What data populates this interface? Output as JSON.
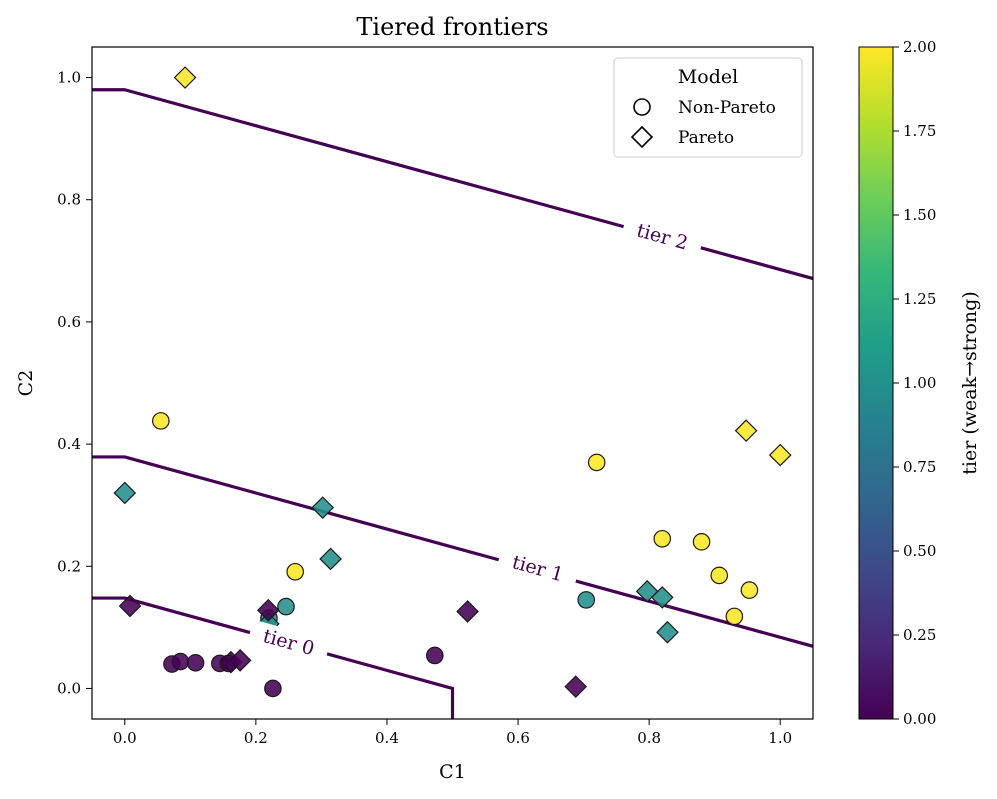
{
  "chart_data": {
    "type": "scatter",
    "title": "Tiered frontiers",
    "xlabel": "C1",
    "ylabel": "C2",
    "xlim": [
      -0.05,
      1.05
    ],
    "ylim": [
      -0.05,
      1.05
    ],
    "x_ticks": [
      0.0,
      0.2,
      0.4,
      0.6,
      0.8,
      1.0
    ],
    "y_ticks": [
      0.0,
      0.2,
      0.4,
      0.6,
      0.8,
      1.0
    ],
    "x_tick_labels": [
      "0.0",
      "0.2",
      "0.4",
      "0.6",
      "0.8",
      "1.0"
    ],
    "y_tick_labels": [
      "0.0",
      "0.2",
      "0.4",
      "0.6",
      "0.8",
      "1.0"
    ],
    "grid": false,
    "legend": {
      "title": "Model",
      "position": "top-right",
      "entries": [
        {
          "label": "Non-Pareto",
          "marker": "circle"
        },
        {
          "label": "Pareto",
          "marker": "diamond"
        }
      ]
    },
    "colorbar": {
      "label": "tier (weak→strong)",
      "range": [
        0.0,
        2.0
      ],
      "ticks": [
        0.0,
        0.25,
        0.5,
        0.75,
        1.0,
        1.25,
        1.5,
        1.75,
        2.0
      ],
      "tick_labels": [
        "0.00",
        "0.25",
        "0.50",
        "0.75",
        "1.00",
        "1.25",
        "1.50",
        "1.75",
        "2.00"
      ],
      "colormap": [
        "#440154",
        "#482878",
        "#3e4a89",
        "#31688e",
        "#26828e",
        "#1f9e89",
        "#35b779",
        "#6ece58",
        "#b5de2b",
        "#fde725"
      ]
    },
    "contours": [
      {
        "label": "tier 0",
        "level": 0,
        "color": "#440154",
        "points": [
          [
            -0.05,
            0.148
          ],
          [
            0.0,
            0.148
          ],
          [
            0.5,
            0.0
          ],
          [
            0.5,
            -0.05
          ]
        ],
        "label_at": [
          0.25,
          0.075
        ]
      },
      {
        "label": "tier 1",
        "level": 1,
        "color": "#440154",
        "points": [
          [
            -0.05,
            0.379
          ],
          [
            0.0,
            0.379
          ],
          [
            1.05,
            0.069
          ]
        ],
        "label_at": [
          0.63,
          0.196
        ]
      },
      {
        "label": "tier 2",
        "level": 2,
        "color": "#440154",
        "points": [
          [
            -0.05,
            0.98
          ],
          [
            0.0,
            0.98
          ],
          [
            1.05,
            0.671
          ]
        ],
        "label_at": [
          0.82,
          0.739
        ]
      }
    ],
    "series": [
      {
        "name": "Non-Pareto",
        "marker": "circle",
        "points": [
          {
            "x": 0.055,
            "y": 0.438,
            "tier": 2
          },
          {
            "x": 0.72,
            "y": 0.37,
            "tier": 2
          },
          {
            "x": 0.82,
            "y": 0.245,
            "tier": 2
          },
          {
            "x": 0.88,
            "y": 0.24,
            "tier": 2
          },
          {
            "x": 0.907,
            "y": 0.185,
            "tier": 2
          },
          {
            "x": 0.953,
            "y": 0.161,
            "tier": 2
          },
          {
            "x": 0.93,
            "y": 0.118,
            "tier": 2
          },
          {
            "x": 0.26,
            "y": 0.191,
            "tier": 2
          },
          {
            "x": 0.704,
            "y": 0.145,
            "tier": 1
          },
          {
            "x": 0.246,
            "y": 0.134,
            "tier": 1
          },
          {
            "x": 0.22,
            "y": 0.115,
            "tier": 1
          },
          {
            "x": 0.072,
            "y": 0.04,
            "tier": 0
          },
          {
            "x": 0.085,
            "y": 0.044,
            "tier": 0
          },
          {
            "x": 0.108,
            "y": 0.042,
            "tier": 0
          },
          {
            "x": 0.145,
            "y": 0.041,
            "tier": 0
          },
          {
            "x": 0.158,
            "y": 0.041,
            "tier": 0
          },
          {
            "x": 0.226,
            "y": 0.0,
            "tier": 0
          },
          {
            "x": 0.473,
            "y": 0.054,
            "tier": 0
          }
        ]
      },
      {
        "name": "Pareto",
        "marker": "diamond",
        "points": [
          {
            "x": 0.092,
            "y": 1.0,
            "tier": 2
          },
          {
            "x": 0.948,
            "y": 0.422,
            "tier": 2
          },
          {
            "x": 1.0,
            "y": 0.382,
            "tier": 2
          },
          {
            "x": 0.0,
            "y": 0.32,
            "tier": 1
          },
          {
            "x": 0.302,
            "y": 0.296,
            "tier": 1
          },
          {
            "x": 0.314,
            "y": 0.212,
            "tier": 1
          },
          {
            "x": 0.797,
            "y": 0.159,
            "tier": 1
          },
          {
            "x": 0.82,
            "y": 0.149,
            "tier": 1
          },
          {
            "x": 0.828,
            "y": 0.092,
            "tier": 1
          },
          {
            "x": 0.219,
            "y": 0.106,
            "tier": 1
          },
          {
            "x": 0.008,
            "y": 0.135,
            "tier": 0
          },
          {
            "x": 0.219,
            "y": 0.128,
            "tier": 0
          },
          {
            "x": 0.162,
            "y": 0.043,
            "tier": 0
          },
          {
            "x": 0.176,
            "y": 0.046,
            "tier": 0
          },
          {
            "x": 0.523,
            "y": 0.126,
            "tier": 0
          },
          {
            "x": 0.688,
            "y": 0.003,
            "tier": 0
          }
        ]
      }
    ]
  }
}
